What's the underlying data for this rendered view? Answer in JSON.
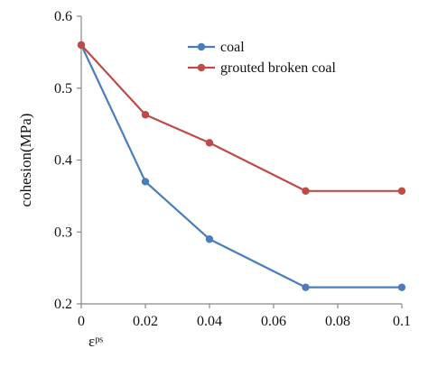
{
  "chart_data": {
    "type": "line",
    "xlabel": "εᵖˢ",
    "ylabel": "cohesion(MPa)",
    "xlim": [
      0,
      0.1
    ],
    "ylim": [
      0.2,
      0.6
    ],
    "x_ticks": [
      "0",
      "0.02",
      "0.04",
      "0.06",
      "0.08",
      "0.1"
    ],
    "y_ticks": [
      "0.2",
      "0.3",
      "0.4",
      "0.5",
      "0.6"
    ],
    "grid": false,
    "legend_position": "top-right",
    "series": [
      {
        "name": "coal",
        "color": "#4a7ebb",
        "x": [
          0,
          0.02,
          0.04,
          0.07,
          0.1
        ],
        "y": [
          0.56,
          0.37,
          0.29,
          0.223,
          0.223
        ]
      },
      {
        "name": "grouted broken coal",
        "color": "#be4b48",
        "x": [
          0,
          0.02,
          0.04,
          0.07,
          0.1
        ],
        "y": [
          0.56,
          0.463,
          0.424,
          0.357,
          0.357
        ]
      }
    ]
  }
}
